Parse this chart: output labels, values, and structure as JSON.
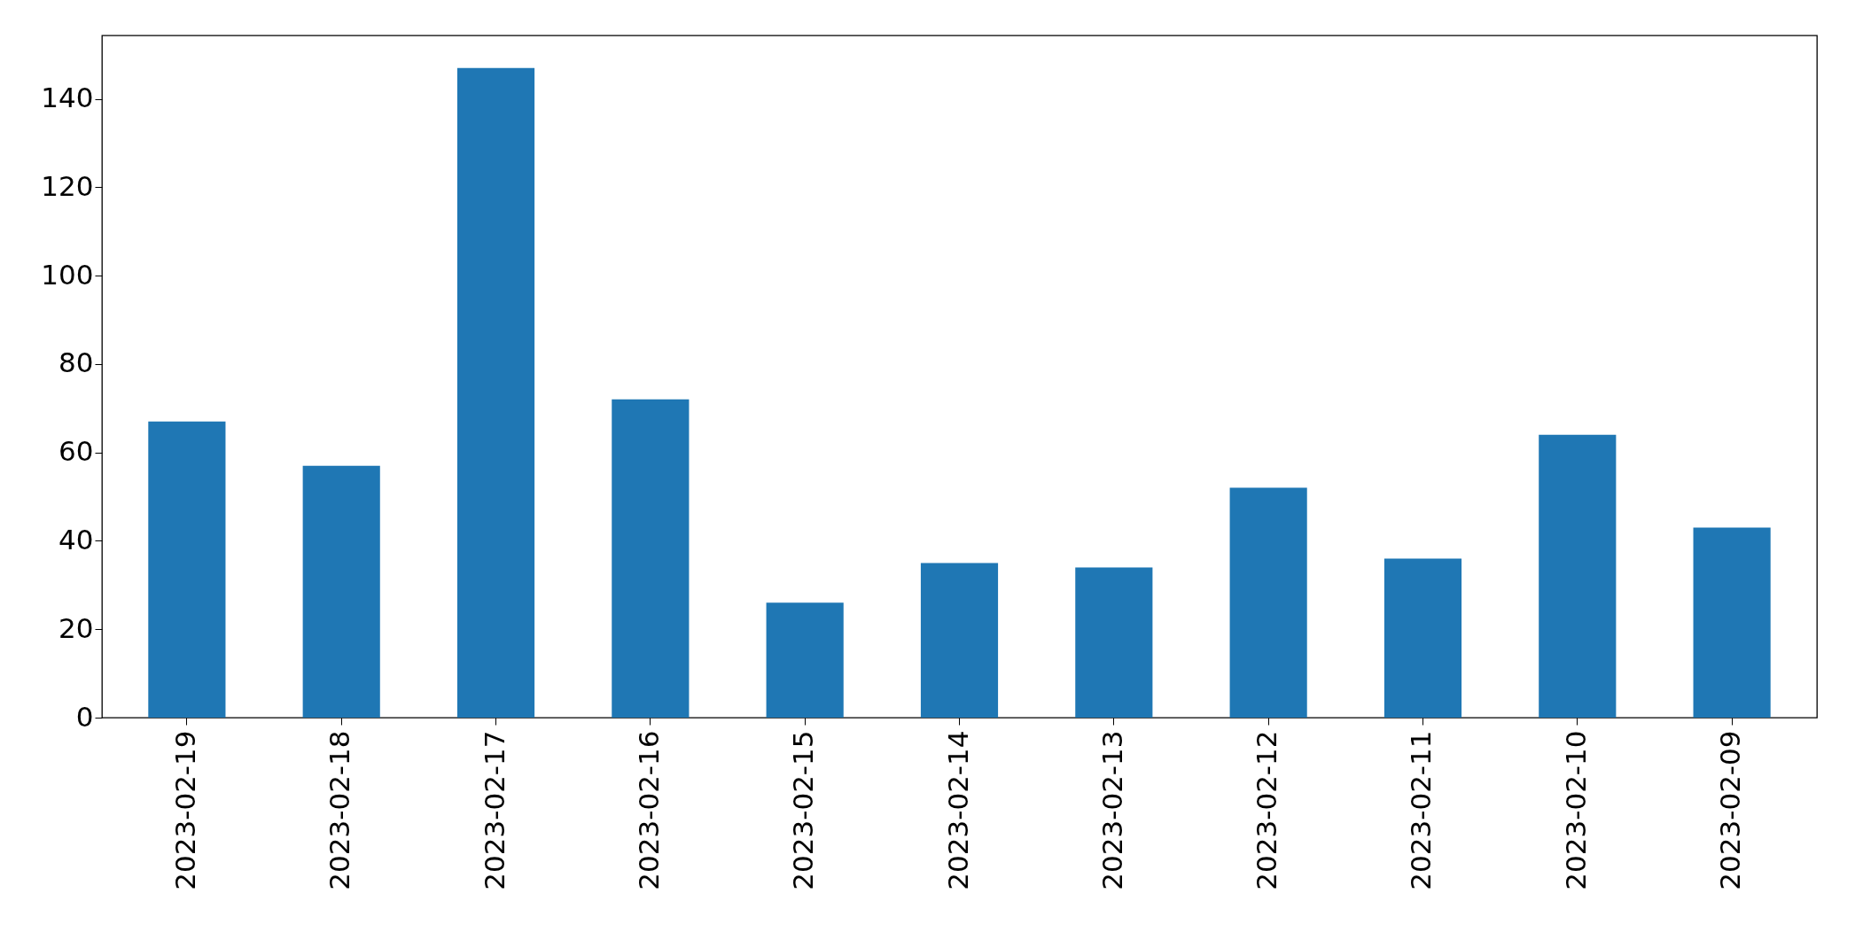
{
  "chart_data": {
    "type": "bar",
    "categories": [
      "2023-02-19",
      "2023-02-18",
      "2023-02-17",
      "2023-02-16",
      "2023-02-15",
      "2023-02-14",
      "2023-02-13",
      "2023-02-12",
      "2023-02-11",
      "2023-02-10",
      "2023-02-09"
    ],
    "values": [
      67,
      57,
      147,
      72,
      26,
      35,
      34,
      52,
      36,
      64,
      43
    ],
    "color": "#1f77b4",
    "ylim": [
      0,
      154.35
    ],
    "yticks": [
      0,
      20,
      40,
      60,
      80,
      100,
      120,
      140
    ],
    "grid": false
  }
}
